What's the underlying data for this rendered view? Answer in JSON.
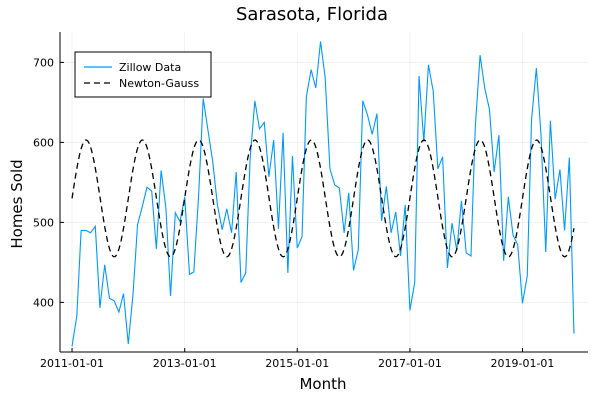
{
  "chart_data": {
    "type": "line",
    "title": "Sarasota, Florida",
    "xlabel": "Month",
    "ylabel": "Homes Sold",
    "x_ticks": [
      "2011-01-01",
      "2013-01-01",
      "2015-01-01",
      "2017-01-01",
      "2019-01-01"
    ],
    "y_ticks": [
      400,
      500,
      600,
      700
    ],
    "xlim": [
      "2010-10-15",
      "2020-03-01"
    ],
    "ylim": [
      338,
      738
    ],
    "grid": true,
    "legend_position": "top-left",
    "series": [
      {
        "name": "Zillow Data",
        "color": "#009AFA",
        "style": "solid",
        "x": [
          "2011-01-01",
          "2011-02-01",
          "2011-03-01",
          "2011-04-01",
          "2011-05-01",
          "2011-06-01",
          "2011-07-01",
          "2011-08-01",
          "2011-09-01",
          "2011-10-01",
          "2011-11-01",
          "2011-12-01",
          "2012-01-01",
          "2012-02-01",
          "2012-03-01",
          "2012-04-01",
          "2012-05-01",
          "2012-06-01",
          "2012-07-01",
          "2012-08-01",
          "2012-09-01",
          "2012-10-01",
          "2012-11-01",
          "2012-12-01",
          "2013-01-01",
          "2013-02-01",
          "2013-03-01",
          "2013-04-01",
          "2013-05-01",
          "2013-06-01",
          "2013-07-01",
          "2013-08-01",
          "2013-09-01",
          "2013-10-01",
          "2013-11-01",
          "2013-12-01",
          "2014-01-01",
          "2014-02-01",
          "2014-03-01",
          "2014-04-01",
          "2014-05-01",
          "2014-06-01",
          "2014-07-01",
          "2014-08-01",
          "2014-09-01",
          "2014-10-01",
          "2014-11-01",
          "2014-12-01",
          "2015-01-01",
          "2015-02-01",
          "2015-03-01",
          "2015-04-01",
          "2015-05-01",
          "2015-06-01",
          "2015-07-01",
          "2015-08-01",
          "2015-09-01",
          "2015-10-01",
          "2015-11-01",
          "2015-12-01",
          "2016-01-01",
          "2016-02-01",
          "2016-03-01",
          "2016-04-01",
          "2016-05-01",
          "2016-06-01",
          "2016-07-01",
          "2016-08-01",
          "2016-09-01",
          "2016-10-01",
          "2016-11-01",
          "2016-12-01",
          "2017-01-01",
          "2017-02-01",
          "2017-03-01",
          "2017-04-01",
          "2017-05-01",
          "2017-06-01",
          "2017-07-01",
          "2017-08-01",
          "2017-09-01",
          "2017-10-01",
          "2017-11-01",
          "2017-12-01",
          "2018-01-01",
          "2018-02-01",
          "2018-03-01",
          "2018-04-01",
          "2018-05-01",
          "2018-06-01",
          "2018-07-01",
          "2018-08-01",
          "2018-09-01",
          "2018-10-01",
          "2018-11-01",
          "2018-12-01",
          "2019-01-01",
          "2019-02-01",
          "2019-03-01",
          "2019-04-01",
          "2019-05-01",
          "2019-06-01",
          "2019-07-01",
          "2019-08-01",
          "2019-09-01",
          "2019-10-01",
          "2019-11-01",
          "2019-12-01"
        ],
        "y": [
          345,
          383,
          490,
          490,
          487,
          495,
          393,
          447,
          405,
          402,
          388,
          411,
          348,
          411,
          497,
          520,
          544,
          539,
          467,
          565,
          518,
          408,
          512,
          501,
          532,
          435,
          438,
          533,
          655,
          615,
          577,
          522,
          491,
          517,
          487,
          563,
          425,
          437,
          579,
          652,
          617,
          625,
          557,
          603,
          492,
          612,
          437,
          583,
          468,
          482,
          657,
          691,
          668,
          726,
          681,
          567,
          547,
          543,
          487,
          537,
          440,
          466,
          652,
          634,
          610,
          636,
          502,
          545,
          487,
          513,
          458,
          522,
          390,
          425,
          683,
          601,
          697,
          664,
          567,
          582,
          443,
          499,
          465,
          527,
          462,
          458,
          620,
          709,
          668,
          641,
          563,
          609,
          452,
          532,
          484,
          472,
          399,
          433,
          629,
          693,
          610,
          463,
          627,
          529,
          566,
          490,
          581,
          361
        ]
      },
      {
        "name": "Newton-Gauss",
        "color": "#000000",
        "style": "dashed",
        "amplitude": 73,
        "offset": 530,
        "period_months": 12,
        "peak_month": "April"
      }
    ]
  }
}
